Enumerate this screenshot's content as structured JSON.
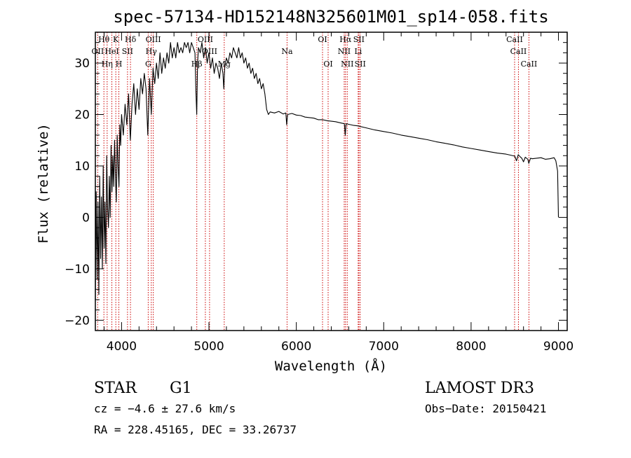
{
  "chart_data": {
    "type": "line",
    "title": "spec-57134-HD152148N325601M01_sp14-058.fits",
    "xlabel": "Wavelength (Å)",
    "ylabel": "Flux (relative)",
    "xlim": [
      3700,
      9100
    ],
    "ylim": [
      -22,
      36
    ],
    "x_ticks": [
      4000,
      5000,
      6000,
      7000,
      8000,
      9000
    ],
    "y_ticks": [
      -20,
      -10,
      0,
      10,
      20,
      30
    ],
    "series": [
      {
        "name": "spectrum",
        "points": [
          [
            3700,
            -16
          ],
          [
            3710,
            5
          ],
          [
            3720,
            -12
          ],
          [
            3730,
            3
          ],
          [
            3740,
            -15
          ],
          [
            3750,
            8
          ],
          [
            3760,
            -8
          ],
          [
            3770,
            4
          ],
          [
            3780,
            -10
          ],
          [
            3790,
            10
          ],
          [
            3800,
            -6
          ],
          [
            3810,
            3
          ],
          [
            3820,
            -9
          ],
          [
            3830,
            12
          ],
          [
            3840,
            2
          ],
          [
            3850,
            -2
          ],
          [
            3860,
            8
          ],
          [
            3870,
            0
          ],
          [
            3880,
            14
          ],
          [
            3890,
            5
          ],
          [
            3900,
            12
          ],
          [
            3910,
            6
          ],
          [
            3920,
            15
          ],
          [
            3930,
            8
          ],
          [
            3940,
            3
          ],
          [
            3950,
            16
          ],
          [
            3960,
            10
          ],
          [
            3970,
            6
          ],
          [
            3980,
            18
          ],
          [
            3990,
            14
          ],
          [
            4000,
            20
          ],
          [
            4020,
            16
          ],
          [
            4040,
            22
          ],
          [
            4060,
            18
          ],
          [
            4080,
            24
          ],
          [
            4100,
            15
          ],
          [
            4120,
            22
          ],
          [
            4140,
            26
          ],
          [
            4160,
            20
          ],
          [
            4180,
            25
          ],
          [
            4200,
            21
          ],
          [
            4220,
            27
          ],
          [
            4240,
            24
          ],
          [
            4260,
            28
          ],
          [
            4280,
            25
          ],
          [
            4300,
            16
          ],
          [
            4320,
            27
          ],
          [
            4340,
            20
          ],
          [
            4360,
            29
          ],
          [
            4380,
            26
          ],
          [
            4400,
            30
          ],
          [
            4420,
            27
          ],
          [
            4440,
            32
          ],
          [
            4460,
            28
          ],
          [
            4480,
            31
          ],
          [
            4500,
            29
          ],
          [
            4520,
            32
          ],
          [
            4540,
            30
          ],
          [
            4560,
            34
          ],
          [
            4580,
            31
          ],
          [
            4600,
            33
          ],
          [
            4620,
            31
          ],
          [
            4640,
            34
          ],
          [
            4660,
            32
          ],
          [
            4680,
            33
          ],
          [
            4700,
            32
          ],
          [
            4720,
            34
          ],
          [
            4740,
            33
          ],
          [
            4760,
            34
          ],
          [
            4780,
            32
          ],
          [
            4800,
            34
          ],
          [
            4820,
            33
          ],
          [
            4840,
            32
          ],
          [
            4850,
            25
          ],
          [
            4860,
            20
          ],
          [
            4870,
            30
          ],
          [
            4880,
            33
          ],
          [
            4900,
            32
          ],
          [
            4920,
            34
          ],
          [
            4940,
            31
          ],
          [
            4960,
            33
          ],
          [
            4980,
            30
          ],
          [
            5000,
            32
          ],
          [
            5020,
            29
          ],
          [
            5040,
            31
          ],
          [
            5060,
            28
          ],
          [
            5080,
            30
          ],
          [
            5100,
            29
          ],
          [
            5120,
            27
          ],
          [
            5140,
            30
          ],
          [
            5160,
            28
          ],
          [
            5170,
            25
          ],
          [
            5180,
            29
          ],
          [
            5200,
            31
          ],
          [
            5220,
            30
          ],
          [
            5240,
            32
          ],
          [
            5260,
            31
          ],
          [
            5280,
            33
          ],
          [
            5300,
            32
          ],
          [
            5320,
            31
          ],
          [
            5340,
            33
          ],
          [
            5360,
            31
          ],
          [
            5380,
            32
          ],
          [
            5400,
            30
          ],
          [
            5420,
            31
          ],
          [
            5440,
            29
          ],
          [
            5460,
            30
          ],
          [
            5480,
            28
          ],
          [
            5500,
            29
          ],
          [
            5520,
            27
          ],
          [
            5540,
            28
          ],
          [
            5560,
            26
          ],
          [
            5580,
            27
          ],
          [
            5600,
            25
          ],
          [
            5620,
            26
          ],
          [
            5640,
            24
          ],
          [
            5660,
            21
          ],
          [
            5680,
            20
          ],
          [
            5700,
            20.5
          ],
          [
            5750,
            20.3
          ],
          [
            5800,
            20.6
          ],
          [
            5850,
            20.1
          ],
          [
            5880,
            20.3
          ],
          [
            5890,
            18
          ],
          [
            5900,
            20
          ],
          [
            5950,
            20.2
          ],
          [
            6000,
            19.9
          ],
          [
            6050,
            19.8
          ],
          [
            6100,
            19.5
          ],
          [
            6150,
            19.4
          ],
          [
            6200,
            19.3
          ],
          [
            6250,
            19.0
          ],
          [
            6300,
            19.0
          ],
          [
            6350,
            18.8
          ],
          [
            6400,
            18.7
          ],
          [
            6450,
            18.6
          ],
          [
            6500,
            18.4
          ],
          [
            6550,
            18.2
          ],
          [
            6560,
            16
          ],
          [
            6570,
            18.2
          ],
          [
            6600,
            18.1
          ],
          [
            6650,
            17.9
          ],
          [
            6700,
            17.8
          ],
          [
            6800,
            17.4
          ],
          [
            6900,
            17.0
          ],
          [
            7000,
            16.7
          ],
          [
            7100,
            16.4
          ],
          [
            7200,
            16.0
          ],
          [
            7300,
            15.7
          ],
          [
            7400,
            15.4
          ],
          [
            7500,
            15.1
          ],
          [
            7600,
            14.7
          ],
          [
            7700,
            14.4
          ],
          [
            7800,
            14.1
          ],
          [
            7900,
            13.7
          ],
          [
            8000,
            13.4
          ],
          [
            8100,
            13.1
          ],
          [
            8200,
            12.8
          ],
          [
            8300,
            12.5
          ],
          [
            8400,
            12.3
          ],
          [
            8450,
            12.1
          ],
          [
            8500,
            11.9
          ],
          [
            8520,
            11.0
          ],
          [
            8540,
            12.2
          ],
          [
            8560,
            11.8
          ],
          [
            8580,
            11.5
          ],
          [
            8600,
            10.8
          ],
          [
            8620,
            11.7
          ],
          [
            8650,
            11.3
          ],
          [
            8660,
            10.5
          ],
          [
            8680,
            11.5
          ],
          [
            8700,
            11.4
          ],
          [
            8750,
            11.5
          ],
          [
            8800,
            11.6
          ],
          [
            8850,
            11.3
          ],
          [
            8900,
            11.4
          ],
          [
            8950,
            11.6
          ],
          [
            8970,
            11.0
          ],
          [
            8990,
            9.0
          ],
          [
            9000,
            0
          ]
        ]
      }
    ],
    "line_markers": [
      {
        "name": "H-theta",
        "x": 3798,
        "label": "Hθ",
        "label_row": 1
      },
      {
        "name": "OII",
        "x": 3727,
        "label": "OII",
        "label_row": 2
      },
      {
        "name": "H-eta",
        "x": 3835,
        "label": "Hη",
        "label_row": 3
      },
      {
        "name": "HeI",
        "x": 3889,
        "label": "HeI",
        "label_row": 2
      },
      {
        "name": "K",
        "x": 3934,
        "label": "K",
        "label_row": 1
      },
      {
        "name": "H",
        "x": 3969,
        "label": "H",
        "label_row": 3
      },
      {
        "name": "SII-4068",
        "x": 4068,
        "label": "SII",
        "label_row": 2
      },
      {
        "name": "H-delta",
        "x": 4102,
        "label": "Hδ",
        "label_row": 1
      },
      {
        "name": "G",
        "x": 4305,
        "label": "G",
        "label_row": 3
      },
      {
        "name": "H-gamma",
        "x": 4340,
        "label": "Hγ",
        "label_row": 2
      },
      {
        "name": "OIII-4363",
        "x": 4363,
        "label": "OIII",
        "label_row": 1
      },
      {
        "name": "H-beta",
        "x": 4861,
        "label": "Hβ",
        "label_row": 3
      },
      {
        "name": "OIII-4959",
        "x": 4959,
        "label": "OIII",
        "label_row": 1
      },
      {
        "name": "OIII-5007",
        "x": 5007,
        "label": "OIII",
        "label_row": 2
      },
      {
        "name": "Mg",
        "x": 5175,
        "label": "Mg",
        "label_row": 3
      },
      {
        "name": "Na",
        "x": 5894,
        "label": "Na",
        "label_row": 2
      },
      {
        "name": "OI-6300",
        "x": 6300,
        "label": "OI",
        "label_row": 1
      },
      {
        "name": "OI-6364",
        "x": 6364,
        "label": "OI",
        "label_row": 3
      },
      {
        "name": "NII-6548",
        "x": 6548,
        "label": "NII",
        "label_row": 2
      },
      {
        "name": "H-alpha",
        "x": 6563,
        "label": "Hα",
        "label_row": 1
      },
      {
        "name": "NII-6583",
        "x": 6583,
        "label": "NII",
        "label_row": 3
      },
      {
        "name": "Li",
        "x": 6708,
        "label": "Li",
        "label_row": 2
      },
      {
        "name": "SII-6716",
        "x": 6716,
        "label": "SII",
        "label_row": 1
      },
      {
        "name": "SII-6731",
        "x": 6731,
        "label": "SII",
        "label_row": 3
      },
      {
        "name": "CaII-8498",
        "x": 8498,
        "label": "CaII",
        "label_row": 1
      },
      {
        "name": "CaII-8542",
        "x": 8542,
        "label": "CaII",
        "label_row": 2
      },
      {
        "name": "CaII-8662",
        "x": 8662,
        "label": "CaII",
        "label_row": 3
      }
    ],
    "colors": {
      "spectrum": "#000000",
      "markers": "#cc0000",
      "frame": "#000000"
    }
  },
  "footer": {
    "class": "STAR",
    "subclass": "G1",
    "survey": "LAMOST DR3",
    "cz": "cz = −4.6 ± 27.6 km/s",
    "obs_date": "Obs−Date: 20150421",
    "coords": "RA = 228.45165, DEC =  33.26737"
  }
}
